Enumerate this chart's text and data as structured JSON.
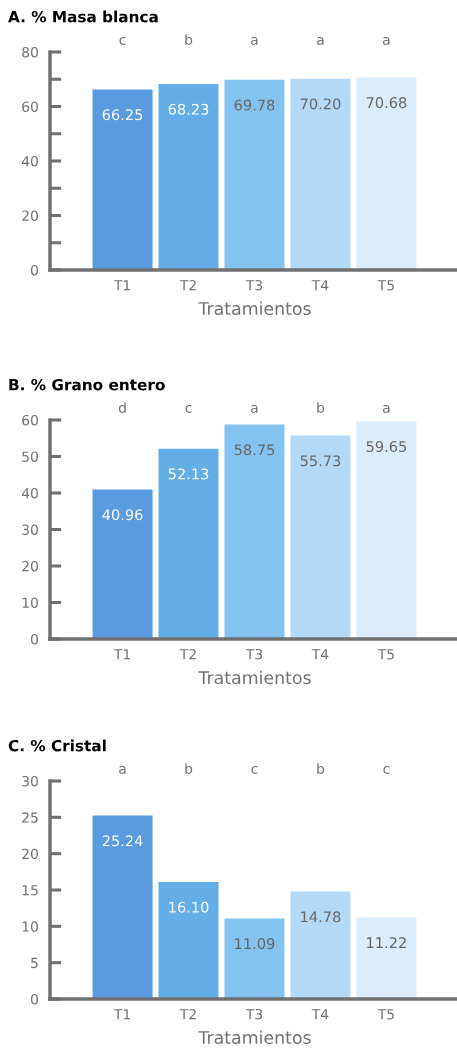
{
  "chart_data": [
    {
      "type": "bar",
      "title": "A. % Masa blanca",
      "xlabel": "Tratamientos",
      "categories": [
        "T1",
        "T2",
        "T3",
        "T4",
        "T5"
      ],
      "values": [
        66.25,
        68.23,
        69.78,
        70.2,
        70.68
      ],
      "value_labels": [
        "66.25",
        "68.23",
        "69.78",
        "70.20",
        "70.68"
      ],
      "colors": [
        "#5a9be0",
        "#63aee6",
        "#84c3ef",
        "#b3d9f6",
        "#dbecfa"
      ],
      "ylim": [
        0,
        80
      ],
      "yticks": [
        0,
        {
          "value": 10,
          "label": null
        },
        20,
        {
          "value": 30,
          "label": null
        },
        40,
        {
          "value": 50,
          "label": null
        },
        60,
        {
          "value": 70,
          "label": null
        },
        80
      ],
      "grid": false,
      "annotations": [
        "c",
        "b",
        "a",
        "a",
        "a"
      ]
    },
    {
      "type": "bar",
      "title": "B. % Grano entero",
      "xlabel": "Tratamientos",
      "categories": [
        "T1",
        "T2",
        "T3",
        "T4",
        "T5"
      ],
      "values": [
        40.96,
        52.13,
        58.75,
        55.73,
        59.65
      ],
      "value_labels": [
        "40.96",
        "52.13",
        "58.75",
        "55.73",
        "59.65"
      ],
      "colors": [
        "#5a9be0",
        "#63aee6",
        "#84c3ef",
        "#b3d9f6",
        "#dbecfa"
      ],
      "ylim": [
        0,
        60
      ],
      "yticks": [
        0,
        10,
        20,
        30,
        40,
        50,
        60
      ],
      "grid": false,
      "annotations": [
        "d",
        "c",
        "a",
        "b",
        "a"
      ]
    },
    {
      "type": "bar",
      "title": "C. % Cristal",
      "xlabel": "Tratamientos",
      "categories": [
        "T1",
        "T2",
        "T3",
        "T4",
        "T5"
      ],
      "values": [
        25.24,
        16.1,
        11.09,
        14.78,
        11.22
      ],
      "value_labels": [
        "25.24",
        "16.10",
        "11.09",
        "14.78",
        "11.22"
      ],
      "colors": [
        "#5a9be0",
        "#63aee6",
        "#84c3ef",
        "#b3d9f6",
        "#dbecfa"
      ],
      "ylim": [
        0,
        30
      ],
      "yticks": [
        0,
        5,
        10,
        15,
        20,
        25,
        30
      ],
      "grid": false,
      "annotations": [
        "a",
        "b",
        "c",
        "b",
        "c"
      ]
    }
  ]
}
